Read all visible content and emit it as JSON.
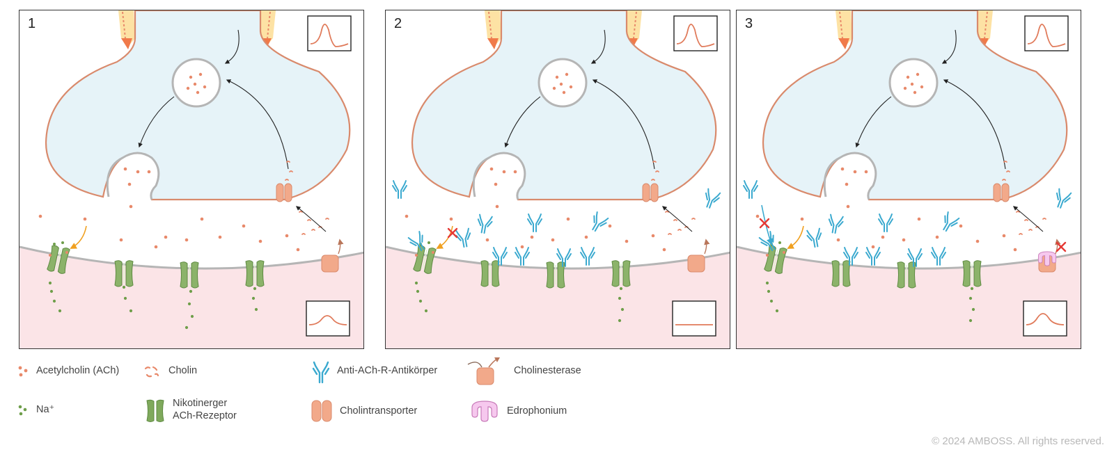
{
  "panels": [
    {
      "number": "1",
      "antibodies": false,
      "edrophonium": false,
      "trace": "small-wave"
    },
    {
      "number": "2",
      "antibodies": true,
      "edrophonium": false,
      "trace": "flat"
    },
    {
      "number": "3",
      "antibodies": true,
      "edrophonium": true,
      "trace": "medium-wave"
    }
  ],
  "legend": {
    "ach": "Acetylcholin (ACh)",
    "cholin": "Cholin",
    "antibody": "Anti-ACh-R-Antikörper",
    "cholinesterase": "Cholinesterase",
    "na": "Na⁺",
    "receptor": "Nikotinerger\nACh-Rezeptor",
    "transporter": "Cholintransporter",
    "edrophonium": "Edrophonium"
  },
  "copyright": "© 2024 AMBOSS. All rights reserved.",
  "colors": {
    "presynaptic": "#e6f3f8",
    "membrane": "#d98a6c",
    "postsynaptic": "#fbe4e7",
    "ach": "#e8896a",
    "na": "#6e9e4a",
    "receptor": "#8cb36a",
    "antibody": "#3aa9cf",
    "cholinesterase": "#f2a98a",
    "edrophonium": "#f6c8ee",
    "blocked": "#e53935",
    "arrow_orange": "#f0a020"
  },
  "icons": {
    "antibody": "antibody-icon",
    "receptor": "receptor-icon",
    "cholinesterase": "cholinesterase-icon",
    "transporter": "transporter-icon",
    "edrophonium": "edrophonium-icon"
  }
}
